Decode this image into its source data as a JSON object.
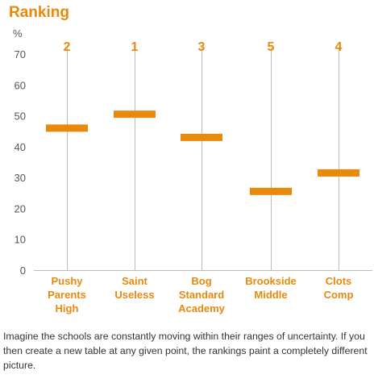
{
  "colors": {
    "accent": "#e8890c",
    "axis": "#bbbbbb",
    "text": "#333333"
  },
  "chart_data": {
    "type": "bar",
    "title": "Ranking",
    "ylabel": "%",
    "ylim": [
      0,
      70
    ],
    "yticks": [
      0,
      10,
      20,
      30,
      40,
      50,
      60,
      70
    ],
    "grid": false,
    "categories": [
      [
        "Pushy",
        "Parents",
        "High"
      ],
      [
        "Saint",
        "Useless"
      ],
      [
        "Bog",
        "Standard",
        "Academy"
      ],
      [
        "Brookside",
        "Middle"
      ],
      [
        "Clots",
        "Comp"
      ]
    ],
    "values": [
      46,
      50.5,
      43,
      25.5,
      31.5
    ],
    "ranks": [
      "2",
      "1",
      "3",
      "5",
      "4"
    ]
  },
  "caption": "Imagine the schools are constantly moving within their ranges of uncertainty. If you then create a new table at any given point, the rankings paint a completely different picture."
}
